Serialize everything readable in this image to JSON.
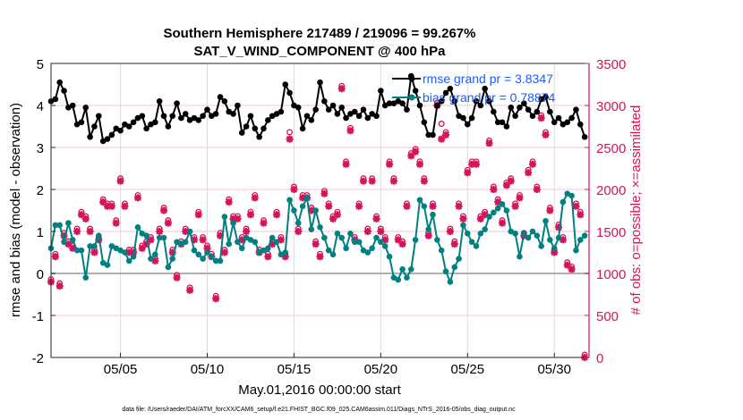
{
  "chart_data": {
    "type": "line",
    "title": [
      "Southern Hemisphere 217489 / 219096 = 99.267%",
      "SAT_V_WIND_COMPONENT @ 400 hPa"
    ],
    "xlabel": "May.01,2016 00:00:00 start",
    "ylabel": "rmse and bias (model - observation)",
    "ylabel_right": "# of obs: o=possible; ×=assimilated",
    "footer": "data file: /Users/raeder/DAI/ATM_forcXX/CAM6_setup/f.e21.FHIST_BGC.f09_025.CAM6assim.011/Diags_NTrS_2016-05/obs_diag_output.nc",
    "xlim_days": [
      0,
      31
    ],
    "x_step_days": 0.25,
    "x_ticks": [
      {
        "day": 4,
        "label": "05/05"
      },
      {
        "day": 9,
        "label": "05/10"
      },
      {
        "day": 14,
        "label": "05/15"
      },
      {
        "day": 19,
        "label": "05/20"
      },
      {
        "day": 24,
        "label": "05/25"
      },
      {
        "day": 29,
        "label": "05/30"
      }
    ],
    "ylim": [
      -2,
      5
    ],
    "y_ticks": [
      "-2",
      "-1",
      "0",
      "1",
      "2",
      "3",
      "4",
      "5"
    ],
    "ylim_right": [
      0,
      3500
    ],
    "y_ticks_right": [
      "0",
      "500",
      "1000",
      "1500",
      "2000",
      "2500",
      "3000",
      "3500"
    ],
    "legend": {
      "placement": "top-right",
      "entries": [
        "rmse grand pr = 3.8347",
        "bias grand pr = 0.78874"
      ]
    },
    "colors": {
      "rmse": "#000000",
      "bias": "#008080",
      "obs": "#d6135a",
      "legend_text": "#1a5cff",
      "zero_line": "#b0b0b0"
    },
    "series": [
      {
        "name": "rmse",
        "values": [
          4.1,
          4.15,
          4.55,
          4.35,
          3.95,
          4.0,
          3.55,
          3.6,
          3.95,
          3.25,
          3.5,
          3.75,
          3.15,
          3.2,
          3.3,
          3.45,
          3.4,
          3.55,
          3.5,
          3.6,
          3.7,
          3.75,
          3.45,
          3.55,
          3.6,
          4.1,
          3.75,
          3.5,
          3.75,
          4.05,
          3.7,
          3.8,
          3.65,
          3.7,
          3.65,
          3.75,
          3.9,
          3.75,
          3.8,
          4.2,
          4.1,
          3.85,
          3.8,
          4.0,
          3.35,
          3.5,
          3.75,
          3.45,
          3.25,
          3.45,
          3.65,
          3.75,
          3.8,
          3.85,
          4.5,
          4.3,
          4.0,
          3.95,
          3.45,
          3.75,
          3.65,
          3.9,
          4.55,
          4.1,
          3.9,
          4.0,
          3.8,
          3.95,
          3.7,
          3.8,
          3.85,
          3.75,
          3.9,
          3.7,
          3.8,
          3.75,
          4.35,
          4.0,
          4.05,
          4.05,
          4.1,
          4.05,
          3.9,
          4.7,
          4.35,
          4.0,
          3.6,
          3.3,
          3.3,
          4.0,
          4.1,
          4.3,
          4.4,
          4.1,
          3.75,
          3.7,
          3.55,
          3.7,
          4.1,
          4.0,
          4.4,
          4.1,
          3.85,
          3.6,
          3.6,
          3.5,
          3.95,
          3.75,
          3.95,
          4.05,
          3.9,
          3.75,
          3.85,
          4.15,
          4.2,
          3.85,
          3.6,
          3.7,
          3.55,
          3.6,
          3.7,
          3.9,
          3.55,
          3.25
        ]
      },
      {
        "name": "bias",
        "values": [
          0.6,
          1.15,
          1.15,
          0.75,
          1.2,
          0.8,
          0.55,
          0.55,
          -0.1,
          0.65,
          0.65,
          0.9,
          0.25,
          0.2,
          0.65,
          0.6,
          0.55,
          0.5,
          0.3,
          0.4,
          1.1,
          0.95,
          0.9,
          0.35,
          0.45,
          0.85,
          0.85,
          0.15,
          0.35,
          0.75,
          0.7,
          0.75,
          1.0,
          0.55,
          0.45,
          0.35,
          0.5,
          0.4,
          0.3,
          0.3,
          1.35,
          0.7,
          1.2,
          0.75,
          0.6,
          0.85,
          0.8,
          0.75,
          0.5,
          0.55,
          0.6,
          0.85,
          0.75,
          0.45,
          0.5,
          1.75,
          1.5,
          1.2,
          1.6,
          1.8,
          1.05,
          1.5,
          1.1,
          0.85,
          0.55,
          0.45,
          0.95,
          0.85,
          0.6,
          0.95,
          0.75,
          0.75,
          0.55,
          0.5,
          0.6,
          0.85,
          0.75,
          0.65,
          0.4,
          -0.1,
          -0.15,
          0.1,
          -0.1,
          0.1,
          0.8,
          1.75,
          1.6,
          1.05,
          1.4,
          0.8,
          0.55,
          0.05,
          -0.2,
          0.15,
          0.35,
          1.15,
          0.95,
          0.75,
          0.65,
          0.95,
          1.05,
          1.35,
          1.45,
          1.55,
          1.65,
          1.5,
          1.0,
          0.95,
          0.4,
          0.95,
          0.85,
          1.0,
          0.9,
          0.65,
          1.25,
          0.8,
          0.6,
          0.85,
          1.7,
          1.9,
          1.85,
          0.55,
          0.8,
          0.9
        ]
      },
      {
        "name": "obs_assimilated",
        "values": [
          900,
          1200,
          850,
          1450,
          1350,
          1300,
          1500,
          1700,
          1650,
          1500,
          1250,
          1400,
          1850,
          1800,
          1800,
          1600,
          2100,
          1800,
          1250,
          1250,
          1900,
          1300,
          1350,
          1400,
          1150,
          1500,
          1750,
          1600,
          1250,
          950,
          1350,
          1500,
          800,
          1400,
          1700,
          1400,
          1300,
          1200,
          700,
          1450,
          1250,
          1850,
          1650,
          1650,
          1400,
          1500,
          1700,
          1900,
          1250,
          1600,
          1200,
          1350,
          1700,
          1400,
          1200,
          2600,
          2000,
          1500,
          1900,
          1900,
          1750,
          1350,
          1200,
          1950,
          1800,
          1650,
          1700,
          3200,
          2300,
          2700,
          1400,
          1800,
          2100,
          1500,
          2100,
          1650,
          1500,
          1400,
          2300,
          2100,
          1400,
          1350,
          1800,
          2400,
          2450,
          2300,
          2100,
          1450,
          1800,
          3000,
          2600,
          2650,
          1500,
          1350,
          1800,
          1650,
          2200,
          2300,
          2300,
          1650,
          1700,
          2550,
          2000,
          1850,
          1600,
          2050,
          2100,
          1800,
          1900,
          1450,
          2200,
          2300,
          2000,
          2850,
          2650,
          1750,
          1250,
          1550,
          1400,
          1100,
          1050,
          1800,
          1700,
          0
        ]
      },
      {
        "name": "obs_possible",
        "values": [
          900,
          1200,
          850,
          1450,
          1350,
          1300,
          1500,
          1700,
          1650,
          1500,
          1250,
          1400,
          1850,
          1800,
          1800,
          1600,
          2100,
          1800,
          1250,
          1250,
          1900,
          1300,
          1350,
          1400,
          1150,
          1500,
          1750,
          1600,
          1250,
          950,
          1350,
          1500,
          800,
          1400,
          1700,
          1400,
          1300,
          1200,
          700,
          1450,
          1250,
          1850,
          1650,
          1650,
          1400,
          1500,
          1700,
          1900,
          1250,
          1600,
          1200,
          1350,
          1700,
          1400,
          1200,
          2650,
          2000,
          1500,
          1900,
          1900,
          1750,
          1350,
          1200,
          1950,
          1800,
          1650,
          1700,
          3200,
          2300,
          2700,
          1400,
          1800,
          2100,
          1500,
          2100,
          1650,
          1500,
          1400,
          2300,
          2100,
          1400,
          1350,
          1800,
          2400,
          2450,
          2300,
          2100,
          1450,
          1800,
          3000,
          2750,
          2650,
          1500,
          1350,
          1800,
          1650,
          2200,
          2300,
          2300,
          1650,
          1700,
          2550,
          2000,
          1850,
          1600,
          2050,
          2100,
          1800,
          1900,
          1450,
          2200,
          2300,
          2000,
          2850,
          2650,
          1750,
          1250,
          1550,
          1400,
          1100,
          1050,
          1800,
          1700,
          0
        ]
      }
    ]
  }
}
